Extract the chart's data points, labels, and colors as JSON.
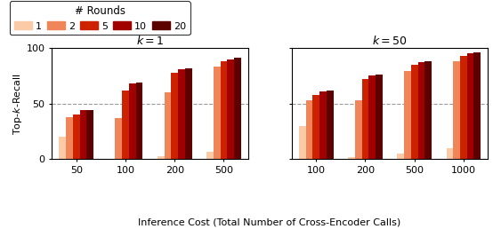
{
  "colors": [
    "#FBCBA7",
    "#F0855A",
    "#CC2200",
    "#A00000",
    "#5C0000"
  ],
  "rounds": [
    1,
    2,
    5,
    10,
    20
  ],
  "k1": {
    "x_labels": [
      "50",
      "100",
      "200",
      "500"
    ],
    "values": [
      [
        20,
        0,
        3,
        7
      ],
      [
        38,
        37,
        60,
        83
      ],
      [
        40,
        62,
        78,
        88
      ],
      [
        44,
        68,
        81,
        90
      ],
      [
        44,
        69,
        82,
        91
      ]
    ]
  },
  "k50": {
    "x_labels": [
      "100",
      "200",
      "500",
      "1000"
    ],
    "values": [
      [
        30,
        2,
        5,
        10
      ],
      [
        53,
        53,
        79,
        88
      ],
      [
        58,
        72,
        85,
        93
      ],
      [
        61,
        75,
        87,
        95
      ],
      [
        62,
        76,
        88,
        96
      ]
    ]
  },
  "title_k1": "$k{=}1$",
  "title_k50": "$k{=}50$",
  "ylabel": "Top-$k$-Recall",
  "xlabel": "Inference Cost (Total Number of Cross-Encoder Calls)",
  "ylim": [
    0,
    100
  ],
  "yticks": [
    0,
    50,
    100
  ],
  "dashed_line_y": 50,
  "legend_title": "# Rounds",
  "bar_width": 0.14
}
